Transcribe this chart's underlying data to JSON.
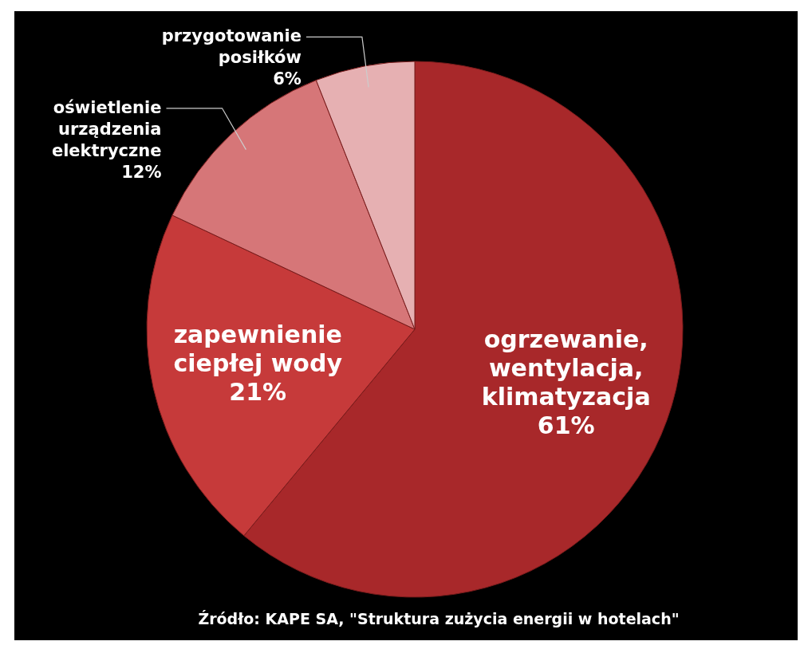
{
  "chart_data": {
    "type": "pie",
    "categories": [
      "ogrzewanie,\nwentylacja,\nklimatyzacja",
      "zapewnienie\nciepłej wody",
      "oświetlenie\nurządzenia\nelektryczne",
      "przygotowanie\nposiłków"
    ],
    "values": [
      61,
      21,
      12,
      6
    ],
    "colors": [
      "#a8282a",
      "#c63a3a",
      "#d67678",
      "#e6b0b2"
    ],
    "value_labels": [
      "61%",
      "21%",
      "12%",
      "6%"
    ],
    "annotations": [
      "Źródło: KAPE SA,  \"Struktura zużycia energii w hotelach\""
    ]
  }
}
